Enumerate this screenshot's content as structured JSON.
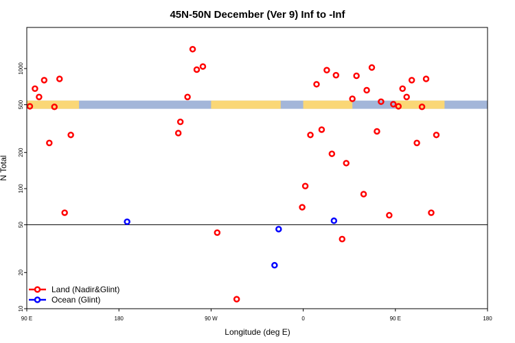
{
  "chart_data": {
    "type": "scatter",
    "title": "45N-50N December (Ver 9)   Inf to -Inf",
    "xlabel": "Longitude (deg E)",
    "ylabel": "N Total",
    "y_scale": "log",
    "xlim": [
      90,
      540
    ],
    "ylim": [
      10,
      2200
    ],
    "x_ticks": [
      {
        "value": 90,
        "label": "90 E"
      },
      {
        "value": 180,
        "label": "180"
      },
      {
        "value": 270,
        "label": "90 W"
      },
      {
        "value": 360,
        "label": "0"
      },
      {
        "value": 450,
        "label": "90 E"
      },
      {
        "value": 540,
        "label": "180"
      }
    ],
    "y_ticks": [
      {
        "value": 10,
        "label": "10"
      },
      {
        "value": 20,
        "label": "20"
      },
      {
        "value": 50,
        "label": "50"
      },
      {
        "value": 100,
        "label": "100"
      },
      {
        "value": 200,
        "label": "200"
      },
      {
        "value": 500,
        "label": "500"
      },
      {
        "value": 1000,
        "label": "1000"
      }
    ],
    "reference_line": 50,
    "land_strip_y": 500,
    "series": [
      {
        "name": "Land (Nadir&Glint)",
        "color": "#ff0000",
        "points": [
          {
            "x": 93,
            "y": 485
          },
          {
            "x": 98,
            "y": 680
          },
          {
            "x": 102,
            "y": 580
          },
          {
            "x": 107,
            "y": 800
          },
          {
            "x": 112,
            "y": 240
          },
          {
            "x": 117,
            "y": 480
          },
          {
            "x": 122,
            "y": 820
          },
          {
            "x": 127,
            "y": 63
          },
          {
            "x": 133,
            "y": 280
          },
          {
            "x": 238,
            "y": 290
          },
          {
            "x": 240,
            "y": 360
          },
          {
            "x": 247,
            "y": 580
          },
          {
            "x": 252,
            "y": 1450
          },
          {
            "x": 256,
            "y": 980
          },
          {
            "x": 262,
            "y": 1040
          },
          {
            "x": 276,
            "y": 43
          },
          {
            "x": 295,
            "y": 12
          },
          {
            "x": 359,
            "y": 70
          },
          {
            "x": 362,
            "y": 105
          },
          {
            "x": 367,
            "y": 280
          },
          {
            "x": 373,
            "y": 740
          },
          {
            "x": 378,
            "y": 310
          },
          {
            "x": 383,
            "y": 970
          },
          {
            "x": 388,
            "y": 195
          },
          {
            "x": 392,
            "y": 880
          },
          {
            "x": 398,
            "y": 38
          },
          {
            "x": 402,
            "y": 163
          },
          {
            "x": 408,
            "y": 560
          },
          {
            "x": 412,
            "y": 870
          },
          {
            "x": 419,
            "y": 90
          },
          {
            "x": 422,
            "y": 660
          },
          {
            "x": 427,
            "y": 1020
          },
          {
            "x": 432,
            "y": 300
          },
          {
            "x": 436,
            "y": 530
          },
          {
            "x": 444,
            "y": 60
          },
          {
            "x": 448,
            "y": 505
          },
          {
            "x": 453,
            "y": 485
          },
          {
            "x": 457,
            "y": 680
          },
          {
            "x": 461,
            "y": 580
          },
          {
            "x": 466,
            "y": 800
          },
          {
            "x": 471,
            "y": 240
          },
          {
            "x": 476,
            "y": 480
          },
          {
            "x": 480,
            "y": 820
          },
          {
            "x": 485,
            "y": 63
          },
          {
            "x": 490,
            "y": 280
          }
        ]
      },
      {
        "name": "Ocean (Glint)",
        "color": "#0000ff",
        "points": [
          {
            "x": 188,
            "y": 53
          },
          {
            "x": 332,
            "y": 23
          },
          {
            "x": 336,
            "y": 46
          },
          {
            "x": 390,
            "y": 54
          }
        ]
      }
    ],
    "legend": {
      "position": "bottom-left"
    }
  }
}
